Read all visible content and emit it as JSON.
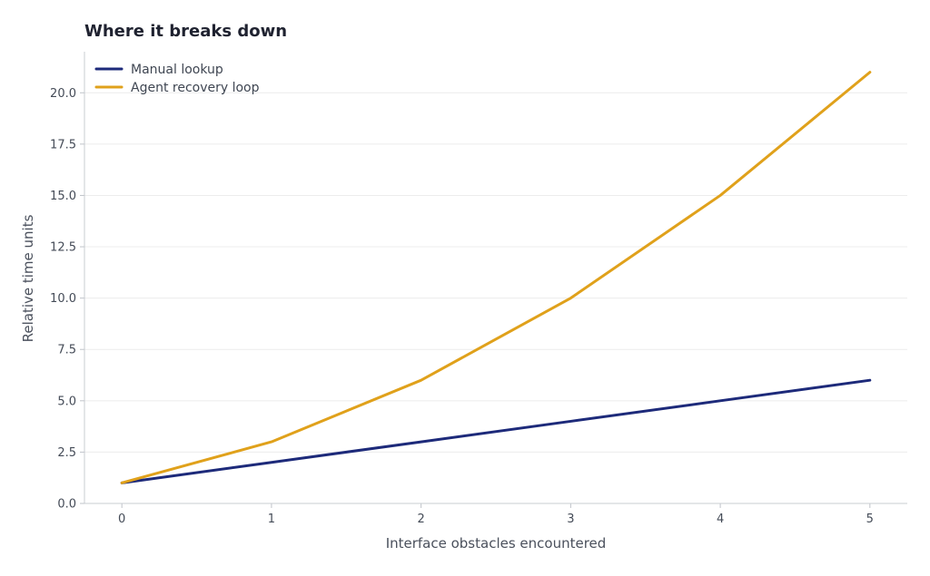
{
  "chart_data": {
    "type": "line",
    "title": "Where it breaks down",
    "xlabel": "Interface obstacles encountered",
    "ylabel": "Relative time units",
    "x": [
      0,
      1,
      2,
      3,
      4,
      5
    ],
    "xlim": [
      -0.25,
      5.25
    ],
    "ylim": [
      0,
      22
    ],
    "x_ticks": [
      0,
      1,
      2,
      3,
      4,
      5
    ],
    "y_ticks": [
      0,
      2.5,
      5,
      7.5,
      10,
      12.5,
      15,
      17.5,
      20
    ],
    "x_tick_labels": [
      "0",
      "1",
      "2",
      "3",
      "4",
      "5"
    ],
    "y_tick_labels": [
      "0.0",
      "2.5",
      "5.0",
      "7.5",
      "10.0",
      "12.5",
      "15.0",
      "17.5",
      "20.0"
    ],
    "grid": true,
    "legend_position": "top-left",
    "series": [
      {
        "name": "Manual lookup",
        "values": [
          1,
          2,
          3,
          4,
          5,
          6
        ],
        "color": "#1d2a7a"
      },
      {
        "name": "Agent recovery loop",
        "values": [
          1,
          3,
          6,
          10,
          15,
          21
        ],
        "color": "#e0a11b"
      }
    ]
  }
}
